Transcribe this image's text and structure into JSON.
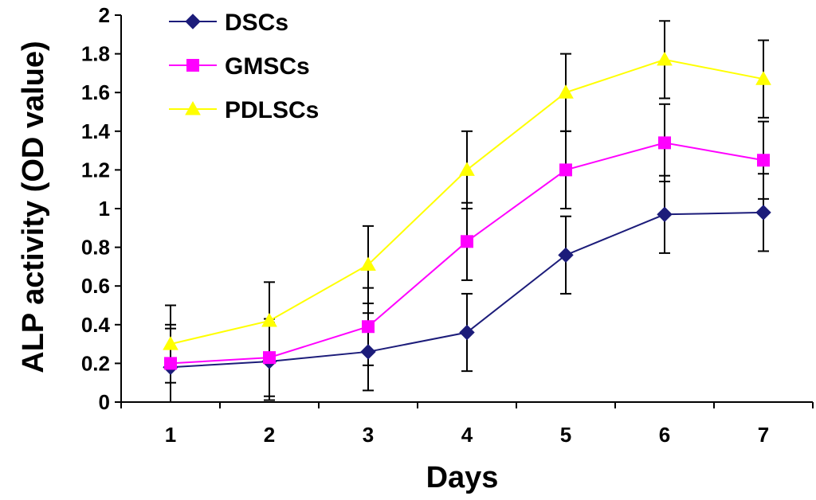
{
  "chart_data": {
    "type": "line",
    "title": "",
    "xlabel": "Days",
    "ylabel": "ALP activity (OD value)",
    "categories": [
      "1",
      "2",
      "3",
      "4",
      "5",
      "6",
      "7"
    ],
    "ylim": [
      0,
      2
    ],
    "yticks": [
      "0",
      "0.2",
      "0.4",
      "0.6",
      "0.8",
      "1",
      "1.2",
      "1.4",
      "1.6",
      "1.8",
      "2"
    ],
    "ytick_values": [
      0,
      0.2,
      0.4,
      0.6,
      0.8,
      1,
      1.2,
      1.4,
      1.6,
      1.8,
      2
    ],
    "grid": false,
    "legend_position": "top-left",
    "series": [
      {
        "name": "DSCs",
        "marker": "diamond",
        "color": "#1c1c7a",
        "values": [
          0.18,
          0.21,
          0.26,
          0.36,
          0.76,
          0.97,
          0.98
        ],
        "error": [
          0.2,
          0.2,
          0.2,
          0.2,
          0.2,
          0.2,
          0.2
        ]
      },
      {
        "name": "GMSCs",
        "marker": "square",
        "color": "#ff00ff",
        "values": [
          0.2,
          0.23,
          0.39,
          0.83,
          1.2,
          1.34,
          1.25
        ],
        "error": [
          0.2,
          0.2,
          0.2,
          0.2,
          0.2,
          0.2,
          0.2
        ]
      },
      {
        "name": "PDLSCs",
        "marker": "triangle",
        "color": "#ffff00",
        "values": [
          0.3,
          0.42,
          0.71,
          1.2,
          1.6,
          1.77,
          1.67
        ],
        "error": [
          0.2,
          0.2,
          0.2,
          0.2,
          0.2,
          0.2,
          0.2
        ]
      }
    ]
  }
}
